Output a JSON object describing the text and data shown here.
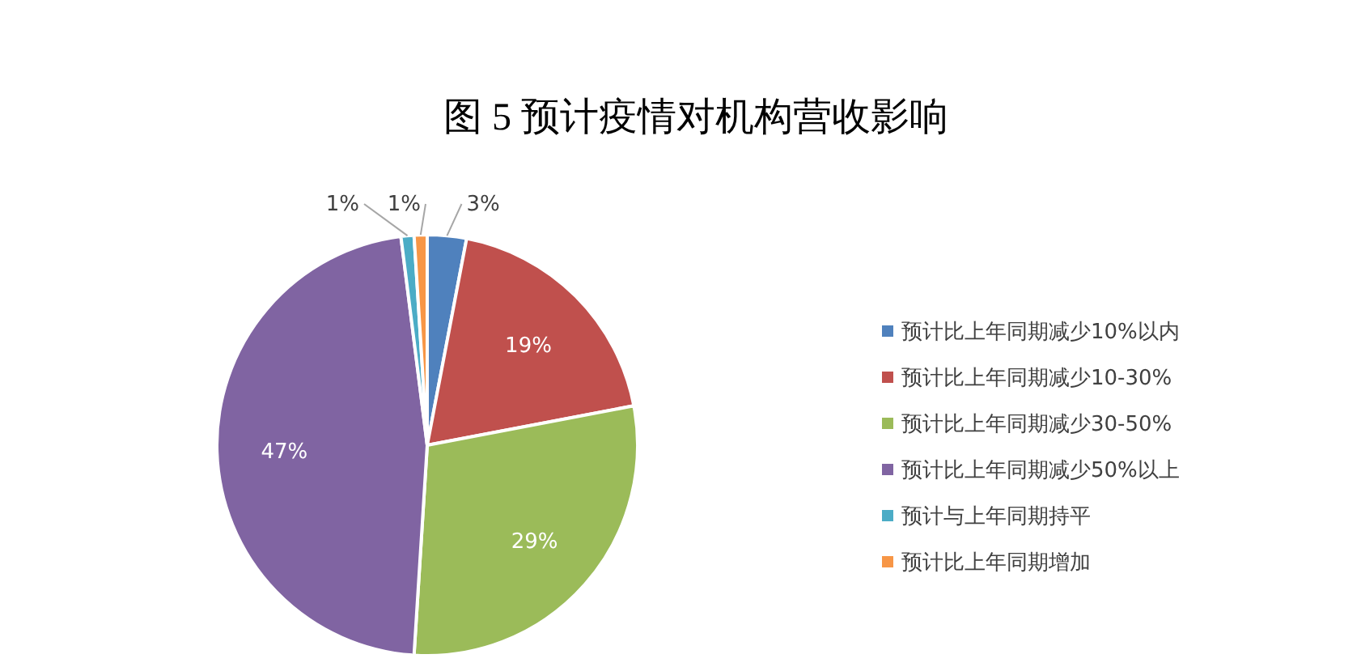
{
  "chart_data": {
    "type": "pie",
    "title": "图 5  预计疫情对机构营收影响",
    "categories": [
      "预计比上年同期减少10%以内",
      "预计比上年同期减少10-30%",
      "预计比上年同期减少30-50%",
      "预计比上年同期减少50%以上",
      "预计与上年同期持平",
      "预计比上年同期增加"
    ],
    "values": [
      3,
      19,
      29,
      47,
      1,
      1
    ],
    "colors": [
      "#4f81bd",
      "#c0504d",
      "#9bbb59",
      "#8064a2",
      "#4bacc6",
      "#f79646"
    ],
    "value_labels": [
      "3%",
      "19%",
      "29%",
      "47%",
      "1%",
      "1%"
    ],
    "legend": "right"
  }
}
